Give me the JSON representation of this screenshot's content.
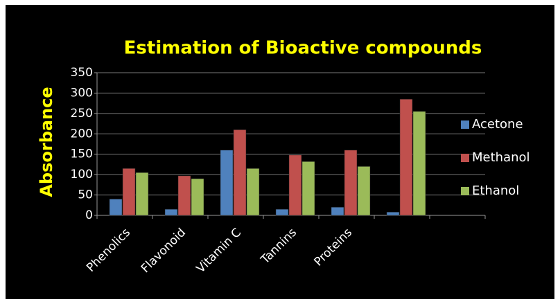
{
  "chart_data": {
    "type": "bar",
    "title": "Estimation of Bioactive compounds",
    "y_label": "Absorbance",
    "categories": [
      "Phenolics",
      "Flavonoid",
      "Vitamin C",
      "Tannins",
      "Proteins",
      null,
      null
    ],
    "series": [
      {
        "name": "Acetone",
        "color": "#4f81bd",
        "values": [
          40,
          15,
          160,
          15,
          20,
          8,
          null
        ]
      },
      {
        "name": "Methanol",
        "color": "#c0504d",
        "values": [
          115,
          97,
          210,
          148,
          160,
          285,
          null
        ]
      },
      {
        "name": "Ethanol",
        "color": "#9bbb59",
        "values": [
          105,
          90,
          115,
          132,
          120,
          255,
          null
        ]
      }
    ],
    "ylim": [
      0,
      350
    ],
    "yticks": [
      0,
      50,
      100,
      150,
      200,
      250,
      300,
      350
    ],
    "grid": true,
    "legend": "right"
  }
}
